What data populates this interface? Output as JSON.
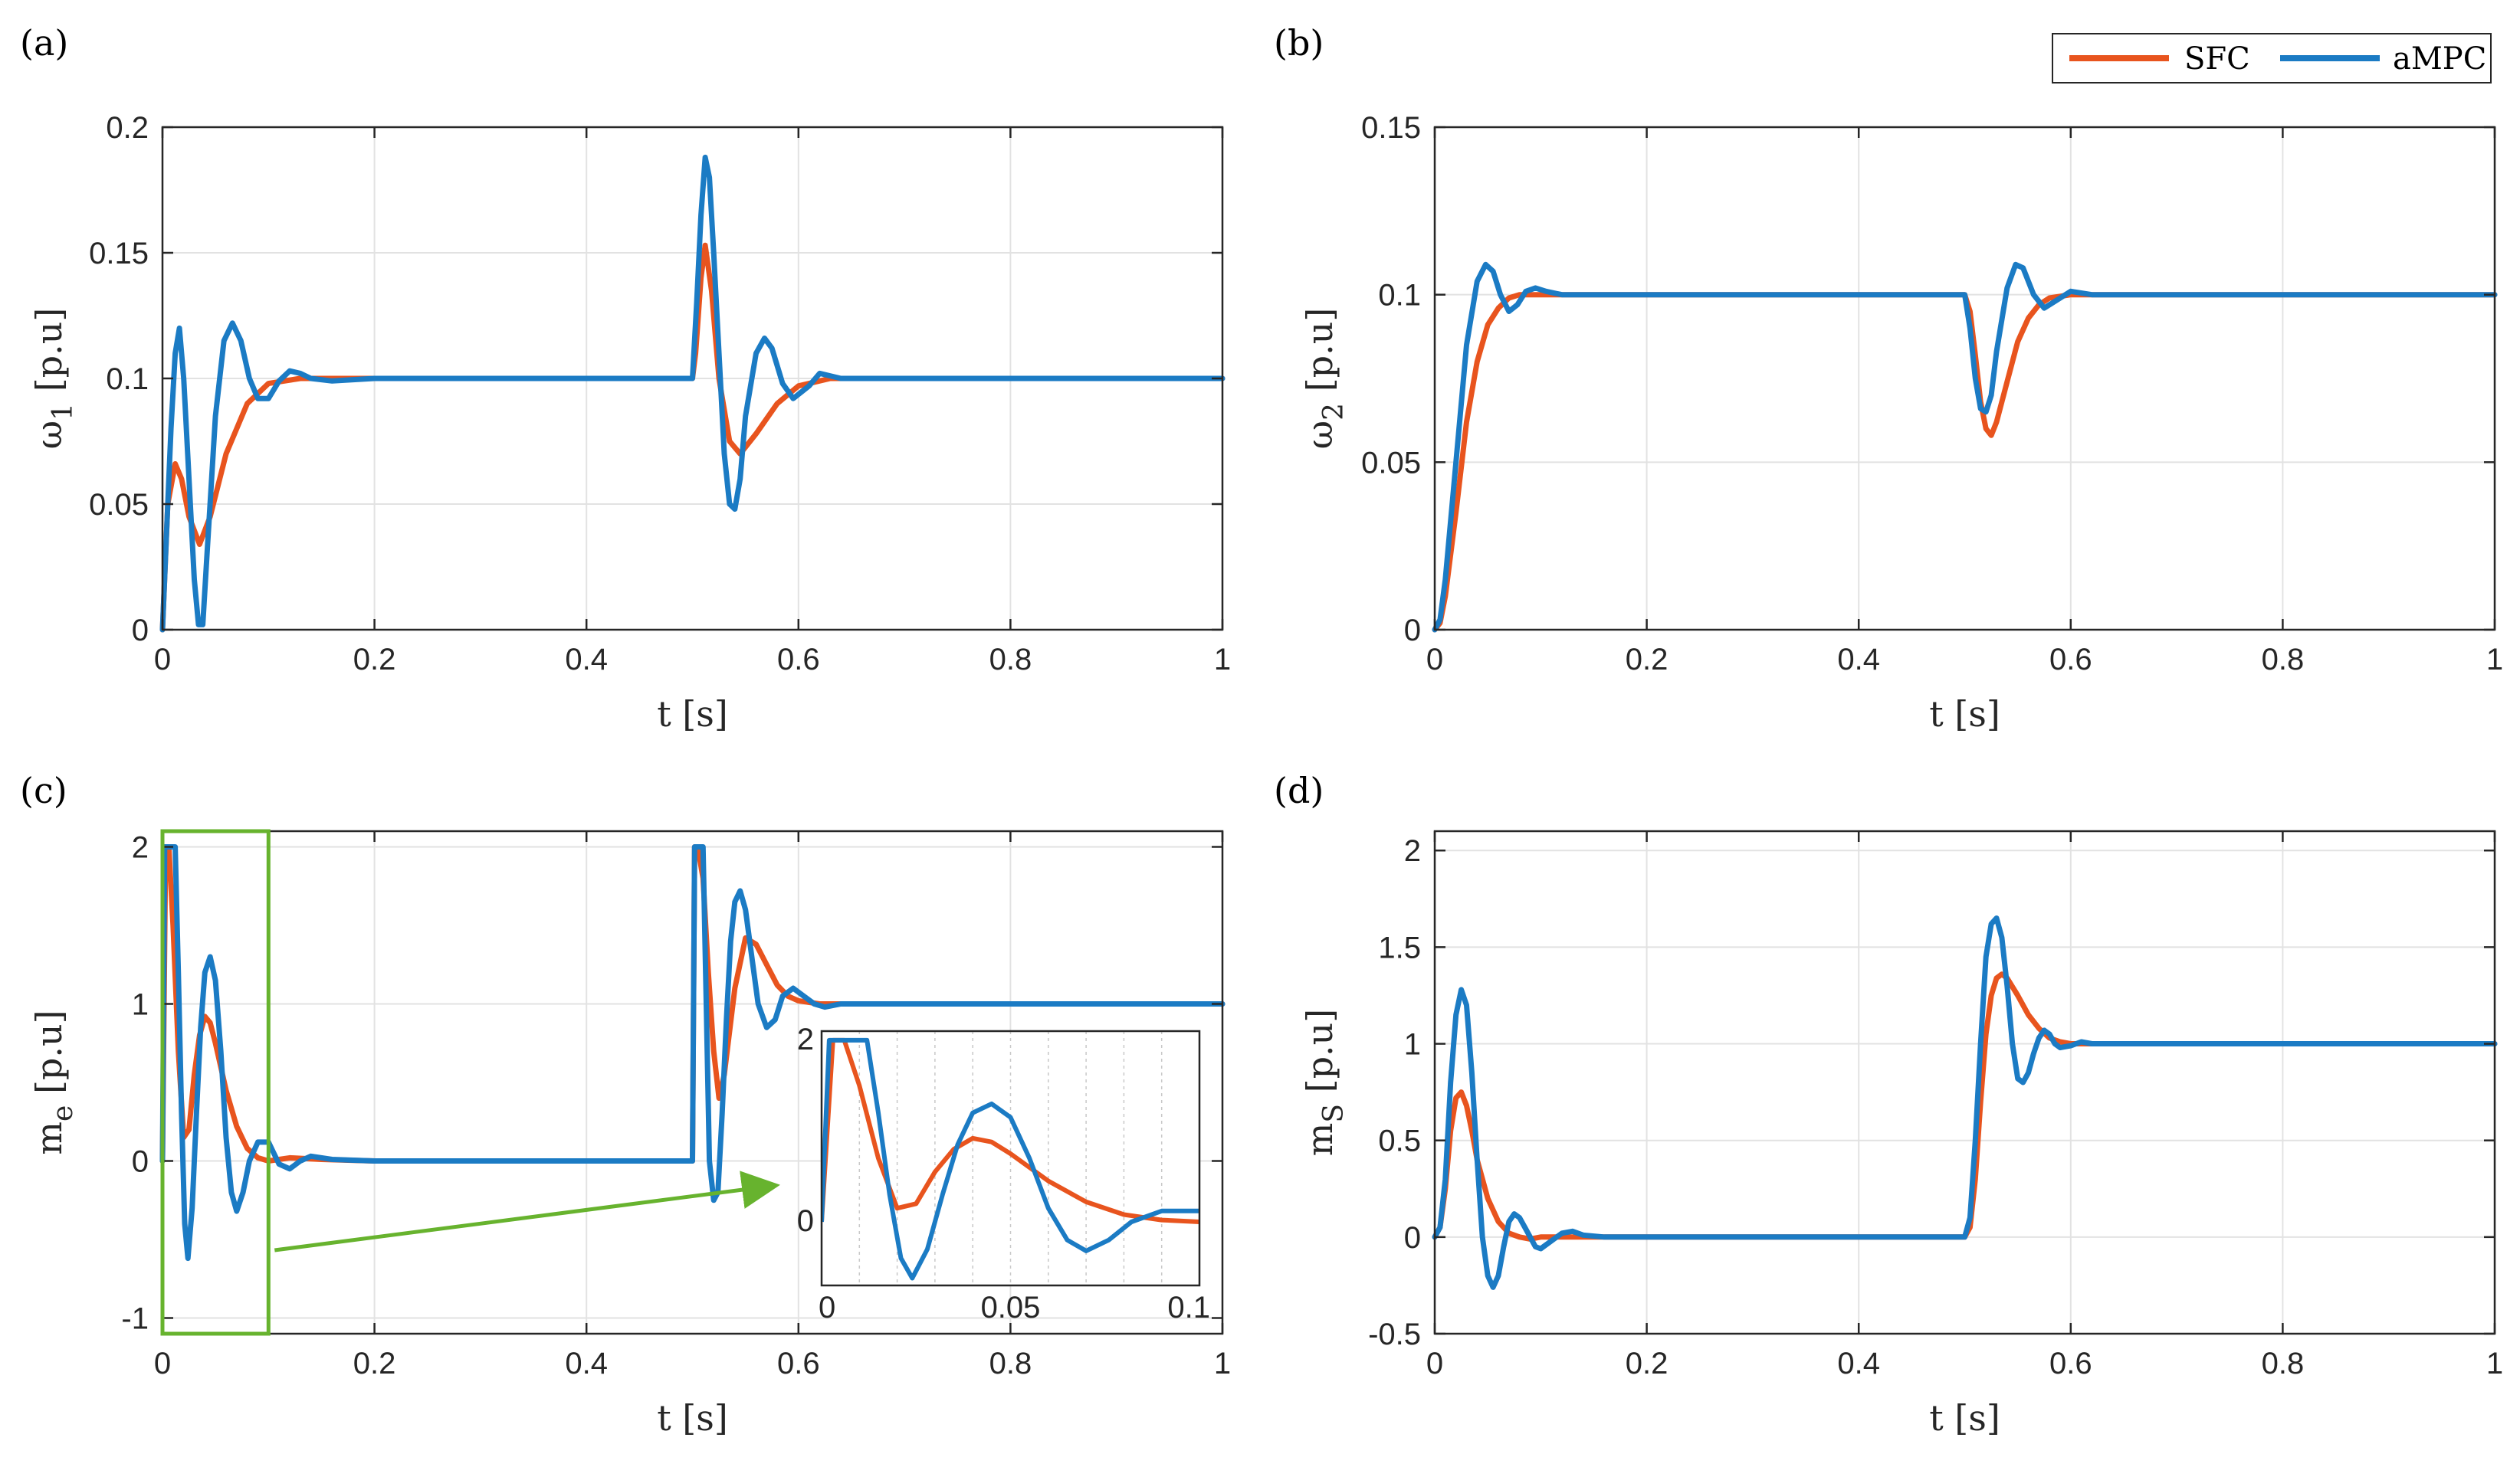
{
  "colors": {
    "sfc": "#E8541E",
    "ampc": "#1B7BC4",
    "zoom": "#67B32E"
  },
  "legend": {
    "items": [
      "SFC",
      "aMPC"
    ]
  },
  "xlabel": "t [s]",
  "chart_data": [
    {
      "id": "a",
      "panel_label": "(a)",
      "type": "line",
      "ylabel_main": "ω",
      "ylabel_sub": "1",
      "ylabel_unit": " [p.u]",
      "xlim": [
        0,
        1
      ],
      "ylim": [
        0,
        0.2
      ],
      "xticks": [
        0,
        0.2,
        0.4,
        0.6,
        0.8,
        1
      ],
      "xticklabels": [
        "0",
        "0.2",
        "0.4",
        "0.6",
        "0.8",
        "1"
      ],
      "yticks": [
        0,
        0.05,
        0.1,
        0.15,
        0.2
      ],
      "yticklabels": [
        "0",
        "0.05",
        "0.1",
        "0.15",
        "0.2"
      ],
      "series": [
        {
          "name": "SFC",
          "x": [
            0,
            0.005,
            0.012,
            0.018,
            0.025,
            0.035,
            0.045,
            0.06,
            0.08,
            0.1,
            0.13,
            0.16,
            0.2,
            0.5,
            0.503,
            0.508,
            0.512,
            0.518,
            0.525,
            0.535,
            0.545,
            0.56,
            0.58,
            0.6,
            0.63,
            0.66,
            1.0
          ],
          "values": [
            0,
            0.05,
            0.066,
            0.06,
            0.045,
            0.034,
            0.045,
            0.07,
            0.09,
            0.098,
            0.1,
            0.1,
            0.1,
            0.1,
            0.11,
            0.14,
            0.153,
            0.135,
            0.1,
            0.075,
            0.07,
            0.078,
            0.09,
            0.097,
            0.1,
            0.1,
            0.1
          ]
        },
        {
          "name": "aMPC",
          "x": [
            0,
            0.004,
            0.008,
            0.012,
            0.016,
            0.02,
            0.025,
            0.03,
            0.034,
            0.038,
            0.042,
            0.05,
            0.058,
            0.066,
            0.074,
            0.082,
            0.09,
            0.1,
            0.11,
            0.12,
            0.13,
            0.14,
            0.16,
            0.2,
            0.5,
            0.504,
            0.508,
            0.512,
            0.516,
            0.52,
            0.525,
            0.53,
            0.535,
            0.54,
            0.545,
            0.55,
            0.56,
            0.568,
            0.575,
            0.585,
            0.595,
            0.61,
            0.62,
            0.64,
            0.66,
            1.0
          ],
          "values": [
            0,
            0.04,
            0.08,
            0.11,
            0.12,
            0.1,
            0.06,
            0.02,
            0.002,
            0.002,
            0.03,
            0.085,
            0.115,
            0.122,
            0.115,
            0.1,
            0.092,
            0.092,
            0.099,
            0.103,
            0.102,
            0.1,
            0.099,
            0.1,
            0.1,
            0.13,
            0.165,
            0.188,
            0.18,
            0.15,
            0.11,
            0.07,
            0.05,
            0.048,
            0.06,
            0.085,
            0.11,
            0.116,
            0.112,
            0.098,
            0.092,
            0.097,
            0.102,
            0.1,
            0.1,
            0.1
          ]
        }
      ]
    },
    {
      "id": "b",
      "panel_label": "(b)",
      "type": "line",
      "ylabel_main": "ω",
      "ylabel_sub": "2",
      "ylabel_unit": " [p.u]",
      "xlim": [
        0,
        1
      ],
      "ylim": [
        0,
        0.15
      ],
      "xticks": [
        0,
        0.2,
        0.4,
        0.6,
        0.8,
        1
      ],
      "xticklabels": [
        "0",
        "0.2",
        "0.4",
        "0.6",
        "0.8",
        "1"
      ],
      "yticks": [
        0,
        0.05,
        0.1,
        0.15
      ],
      "yticklabels": [
        "0",
        "0.05",
        "0.1",
        "0.15"
      ],
      "series": [
        {
          "name": "SFC",
          "x": [
            0,
            0.005,
            0.01,
            0.02,
            0.03,
            0.04,
            0.05,
            0.06,
            0.07,
            0.08,
            0.1,
            0.2,
            0.5,
            0.505,
            0.51,
            0.515,
            0.52,
            0.525,
            0.53,
            0.54,
            0.55,
            0.56,
            0.57,
            0.58,
            0.6,
            0.64,
            1.0
          ],
          "values": [
            0,
            0.002,
            0.01,
            0.035,
            0.062,
            0.08,
            0.091,
            0.096,
            0.099,
            0.1,
            0.1,
            0.1,
            0.1,
            0.095,
            0.082,
            0.068,
            0.06,
            0.058,
            0.062,
            0.074,
            0.086,
            0.093,
            0.097,
            0.099,
            0.1,
            0.1,
            0.1
          ]
        },
        {
          "name": "aMPC",
          "x": [
            0,
            0.005,
            0.01,
            0.02,
            0.03,
            0.04,
            0.048,
            0.055,
            0.062,
            0.07,
            0.078,
            0.086,
            0.095,
            0.105,
            0.12,
            0.2,
            0.5,
            0.505,
            0.51,
            0.515,
            0.52,
            0.525,
            0.53,
            0.54,
            0.548,
            0.555,
            0.565,
            0.575,
            0.585,
            0.6,
            0.62,
            1.0
          ],
          "values": [
            0,
            0.003,
            0.015,
            0.05,
            0.085,
            0.104,
            0.109,
            0.107,
            0.1,
            0.095,
            0.097,
            0.101,
            0.102,
            0.101,
            0.1,
            0.1,
            0.1,
            0.09,
            0.075,
            0.066,
            0.065,
            0.07,
            0.083,
            0.102,
            0.109,
            0.108,
            0.1,
            0.096,
            0.098,
            0.101,
            0.1,
            0.1
          ]
        }
      ]
    },
    {
      "id": "c",
      "panel_label": "(c)",
      "type": "line",
      "ylabel_main": "m",
      "ylabel_sub": "e",
      "ylabel_unit": " [p.u]",
      "xlim": [
        0,
        1
      ],
      "ylim": [
        -1.1,
        2.1
      ],
      "xticks": [
        0,
        0.2,
        0.4,
        0.6,
        0.8,
        1
      ],
      "xticklabels": [
        "0",
        "0.2",
        "0.4",
        "0.6",
        "0.8",
        "1"
      ],
      "yticks": [
        -1,
        0,
        1,
        2
      ],
      "yticklabels": [
        "-1",
        "0",
        "1",
        "2"
      ],
      "zoom_box": {
        "x": [
          0,
          0.1
        ],
        "y": [
          -1.1,
          2.1
        ]
      },
      "series": [
        {
          "name": "SFC",
          "x": [
            0,
            0.003,
            0.006,
            0.01,
            0.015,
            0.02,
            0.025,
            0.03,
            0.035,
            0.04,
            0.045,
            0.05,
            0.06,
            0.07,
            0.08,
            0.09,
            0.1,
            0.12,
            0.15,
            0.2,
            0.5,
            0.502,
            0.505,
            0.51,
            0.515,
            0.52,
            0.525,
            0.53,
            0.54,
            0.55,
            0.56,
            0.57,
            0.58,
            0.59,
            0.6,
            0.62,
            0.65,
            1.0
          ],
          "values": [
            0,
            2.0,
            2.0,
            1.5,
            0.7,
            0.15,
            0.2,
            0.55,
            0.8,
            0.92,
            0.88,
            0.75,
            0.45,
            0.22,
            0.08,
            0.02,
            0.0,
            0.02,
            0.01,
            0,
            0,
            2.0,
            2.0,
            1.8,
            1.2,
            0.7,
            0.4,
            0.55,
            1.1,
            1.42,
            1.38,
            1.25,
            1.12,
            1.05,
            1.02,
            1.0,
            1.0,
            1.0
          ]
        },
        {
          "name": "aMPC",
          "x": [
            0,
            0.002,
            0.012,
            0.015,
            0.018,
            0.021,
            0.024,
            0.028,
            0.032,
            0.036,
            0.04,
            0.045,
            0.05,
            0.055,
            0.06,
            0.065,
            0.07,
            0.076,
            0.082,
            0.09,
            0.1,
            0.11,
            0.12,
            0.13,
            0.14,
            0.16,
            0.2,
            0.5,
            0.502,
            0.51,
            0.513,
            0.516,
            0.52,
            0.524,
            0.528,
            0.532,
            0.536,
            0.54,
            0.545,
            0.55,
            0.556,
            0.562,
            0.57,
            0.578,
            0.585,
            0.595,
            0.605,
            0.615,
            0.625,
            0.64,
            0.66,
            1.0
          ],
          "values": [
            0,
            2.0,
            2.0,
            1.2,
            0.3,
            -0.4,
            -0.62,
            -0.3,
            0.3,
            0.85,
            1.2,
            1.3,
            1.15,
            0.7,
            0.15,
            -0.2,
            -0.32,
            -0.2,
            0.0,
            0.12,
            0.12,
            -0.02,
            -0.05,
            0.0,
            0.03,
            0.01,
            0,
            0,
            2.0,
            2.0,
            1.0,
            0.0,
            -0.25,
            -0.2,
            0.3,
            0.9,
            1.4,
            1.65,
            1.72,
            1.6,
            1.3,
            1.0,
            0.85,
            0.9,
            1.05,
            1.1,
            1.05,
            1.0,
            0.98,
            1.0,
            1.0,
            1.0
          ]
        }
      ],
      "inset": {
        "xlim": [
          0,
          0.1
        ],
        "ylim": [
          -0.7,
          2.1
        ],
        "xticks": [
          0,
          0.05,
          0.1
        ],
        "xticklabels": [
          "0",
          "0.05",
          "0.1"
        ],
        "yticks": [
          0,
          2
        ],
        "yticklabels": [
          "0",
          "2"
        ]
      }
    },
    {
      "id": "d",
      "panel_label": "(d)",
      "type": "line",
      "ylabel_main": "m",
      "ylabel_sub": "S",
      "ylabel_unit": " [p.u]",
      "xlim": [
        0,
        1
      ],
      "ylim": [
        -0.5,
        2.1
      ],
      "xticks": [
        0,
        0.2,
        0.4,
        0.6,
        0.8,
        1
      ],
      "xticklabels": [
        "0",
        "0.2",
        "0.4",
        "0.6",
        "0.8",
        "1"
      ],
      "yticks": [
        -0.5,
        0,
        0.5,
        1,
        1.5,
        2
      ],
      "yticklabels": [
        "-0.5",
        "0",
        "0.5",
        "1",
        "1.5",
        "2"
      ],
      "series": [
        {
          "name": "SFC",
          "x": [
            0,
            0.005,
            0.01,
            0.015,
            0.02,
            0.025,
            0.03,
            0.035,
            0.04,
            0.05,
            0.06,
            0.07,
            0.08,
            0.09,
            0.1,
            0.12,
            0.15,
            0.2,
            0.5,
            0.505,
            0.51,
            0.515,
            0.52,
            0.525,
            0.53,
            0.535,
            0.54,
            0.55,
            0.56,
            0.57,
            0.58,
            0.59,
            0.6,
            0.62,
            0.65,
            1.0
          ],
          "values": [
            0,
            0.05,
            0.25,
            0.55,
            0.72,
            0.75,
            0.68,
            0.55,
            0.4,
            0.2,
            0.08,
            0.02,
            0.0,
            -0.01,
            0.0,
            0.0,
            0.0,
            0,
            0,
            0.05,
            0.3,
            0.7,
            1.05,
            1.25,
            1.34,
            1.36,
            1.34,
            1.25,
            1.15,
            1.08,
            1.03,
            1.01,
            1.0,
            1.0,
            1.0,
            1.0
          ]
        },
        {
          "name": "aMPC",
          "x": [
            0,
            0.005,
            0.01,
            0.015,
            0.02,
            0.025,
            0.03,
            0.035,
            0.04,
            0.045,
            0.05,
            0.055,
            0.06,
            0.065,
            0.07,
            0.075,
            0.08,
            0.085,
            0.09,
            0.095,
            0.1,
            0.11,
            0.12,
            0.13,
            0.14,
            0.16,
            0.2,
            0.5,
            0.505,
            0.51,
            0.515,
            0.52,
            0.525,
            0.53,
            0.535,
            0.54,
            0.545,
            0.55,
            0.555,
            0.56,
            0.565,
            0.57,
            0.575,
            0.58,
            0.585,
            0.59,
            0.6,
            0.61,
            0.62,
            0.64,
            0.66,
            1.0
          ],
          "values": [
            0,
            0.05,
            0.3,
            0.8,
            1.15,
            1.28,
            1.2,
            0.85,
            0.4,
            0.0,
            -0.2,
            -0.26,
            -0.2,
            -0.05,
            0.08,
            0.12,
            0.1,
            0.05,
            0.0,
            -0.05,
            -0.06,
            -0.02,
            0.02,
            0.03,
            0.01,
            0.0,
            0,
            0,
            0.1,
            0.5,
            1.0,
            1.45,
            1.62,
            1.65,
            1.55,
            1.3,
            1.0,
            0.82,
            0.8,
            0.85,
            0.95,
            1.03,
            1.07,
            1.05,
            1.0,
            0.98,
            0.99,
            1.01,
            1.0,
            1.0,
            1.0,
            1.0
          ]
        }
      ]
    }
  ]
}
